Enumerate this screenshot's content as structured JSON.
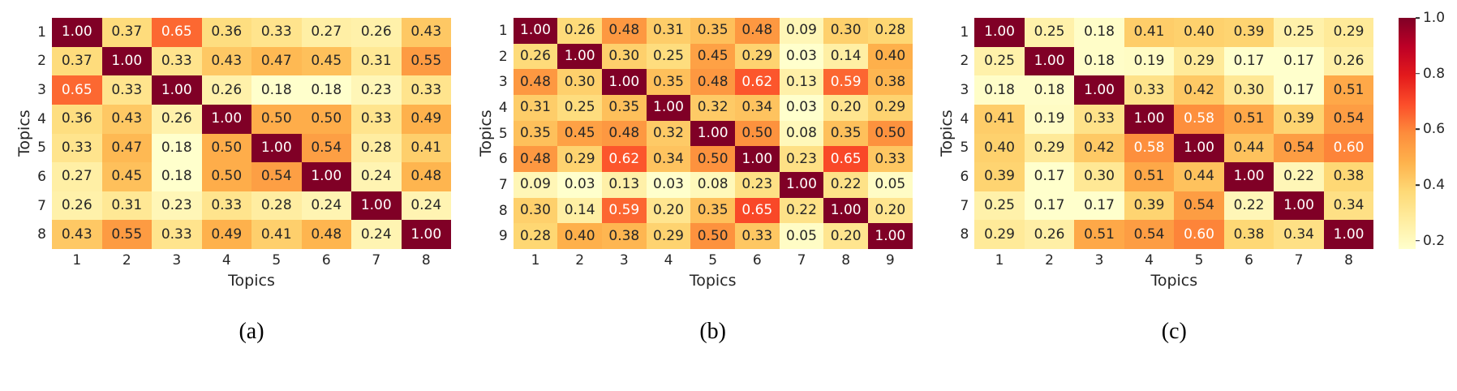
{
  "figure": {
    "background": "#ffffff",
    "colormap": {
      "name": "YlOrRd",
      "stops": [
        "#ffffcc",
        "#ffeda0",
        "#fed976",
        "#feb24c",
        "#fd8d3c",
        "#fc4e2a",
        "#e31a1c",
        "#bd0026",
        "#800026"
      ]
    },
    "annotation_text_colors": {
      "dark": "#262626",
      "light": "#ffffff"
    },
    "colorbar": {
      "vmin": 0.17,
      "vmax": 1.0,
      "ticks": [
        {
          "label": "1.0",
          "value": 1.0
        },
        {
          "label": "0.8",
          "value": 0.8
        },
        {
          "label": "0.6",
          "value": 0.6
        },
        {
          "label": "0.4",
          "value": 0.4
        },
        {
          "label": "0.2",
          "value": 0.2
        }
      ]
    }
  },
  "chart_data": [
    {
      "type": "heatmap",
      "caption": "(a)",
      "xlabel": "Topics",
      "ylabel": "Topics",
      "x_ticks": [
        "1",
        "2",
        "3",
        "4",
        "5",
        "6",
        "7",
        "8"
      ],
      "y_ticks": [
        "1",
        "2",
        "3",
        "4",
        "5",
        "6",
        "7",
        "8"
      ],
      "vmin": 0.18,
      "vmax": 1.0,
      "values": [
        [
          1.0,
          0.37,
          0.65,
          0.36,
          0.33,
          0.27,
          0.26,
          0.43
        ],
        [
          0.37,
          1.0,
          0.33,
          0.43,
          0.47,
          0.45,
          0.31,
          0.55
        ],
        [
          0.65,
          0.33,
          1.0,
          0.26,
          0.18,
          0.18,
          0.23,
          0.33
        ],
        [
          0.36,
          0.43,
          0.26,
          1.0,
          0.5,
          0.5,
          0.33,
          0.49
        ],
        [
          0.33,
          0.47,
          0.18,
          0.5,
          1.0,
          0.54,
          0.28,
          0.41
        ],
        [
          0.27,
          0.45,
          0.18,
          0.5,
          0.54,
          1.0,
          0.24,
          0.48
        ],
        [
          0.26,
          0.31,
          0.23,
          0.33,
          0.28,
          0.24,
          1.0,
          0.24
        ],
        [
          0.43,
          0.55,
          0.33,
          0.49,
          0.41,
          0.48,
          0.24,
          1.0
        ]
      ]
    },
    {
      "type": "heatmap",
      "caption": "(b)",
      "xlabel": "Topics",
      "ylabel": "Topics",
      "x_ticks": [
        "1",
        "2",
        "3",
        "4",
        "5",
        "6",
        "7",
        "8",
        "9"
      ],
      "y_ticks": [
        "1",
        "2",
        "3",
        "4",
        "5",
        "6",
        "7",
        "8",
        "9"
      ],
      "vmin": 0.03,
      "vmax": 1.0,
      "values": [
        [
          1.0,
          0.26,
          0.48,
          0.31,
          0.35,
          0.48,
          0.09,
          0.3,
          0.28
        ],
        [
          0.26,
          1.0,
          0.3,
          0.25,
          0.45,
          0.29,
          0.03,
          0.14,
          0.4
        ],
        [
          0.48,
          0.3,
          1.0,
          0.35,
          0.48,
          0.62,
          0.13,
          0.59,
          0.38
        ],
        [
          0.31,
          0.25,
          0.35,
          1.0,
          0.32,
          0.34,
          0.03,
          0.2,
          0.29
        ],
        [
          0.35,
          0.45,
          0.48,
          0.32,
          1.0,
          0.5,
          0.08,
          0.35,
          0.5
        ],
        [
          0.48,
          0.29,
          0.62,
          0.34,
          0.5,
          1.0,
          0.23,
          0.65,
          0.33
        ],
        [
          0.09,
          0.03,
          0.13,
          0.03,
          0.08,
          0.23,
          1.0,
          0.22,
          0.05
        ],
        [
          0.3,
          0.14,
          0.59,
          0.2,
          0.35,
          0.65,
          0.22,
          1.0,
          0.2
        ],
        [
          0.28,
          0.4,
          0.38,
          0.29,
          0.5,
          0.33,
          0.05,
          0.2,
          1.0
        ]
      ]
    },
    {
      "type": "heatmap",
      "caption": "(c)",
      "xlabel": "Topics",
      "ylabel": "Topics",
      "x_ticks": [
        "1",
        "2",
        "3",
        "4",
        "5",
        "6",
        "7",
        "8"
      ],
      "y_ticks": [
        "1",
        "2",
        "3",
        "4",
        "5",
        "6",
        "7",
        "8"
      ],
      "vmin": 0.17,
      "vmax": 1.0,
      "values": [
        [
          1.0,
          0.25,
          0.18,
          0.41,
          0.4,
          0.39,
          0.25,
          0.29
        ],
        [
          0.25,
          1.0,
          0.18,
          0.19,
          0.29,
          0.17,
          0.17,
          0.26
        ],
        [
          0.18,
          0.18,
          1.0,
          0.33,
          0.42,
          0.3,
          0.17,
          0.51
        ],
        [
          0.41,
          0.19,
          0.33,
          1.0,
          0.58,
          0.51,
          0.39,
          0.54
        ],
        [
          0.4,
          0.29,
          0.42,
          0.58,
          1.0,
          0.44,
          0.54,
          0.6
        ],
        [
          0.39,
          0.17,
          0.3,
          0.51,
          0.44,
          1.0,
          0.22,
          0.38
        ],
        [
          0.25,
          0.17,
          0.17,
          0.39,
          0.54,
          0.22,
          1.0,
          0.34
        ],
        [
          0.29,
          0.26,
          0.51,
          0.54,
          0.6,
          0.38,
          0.34,
          1.0
        ]
      ]
    }
  ]
}
